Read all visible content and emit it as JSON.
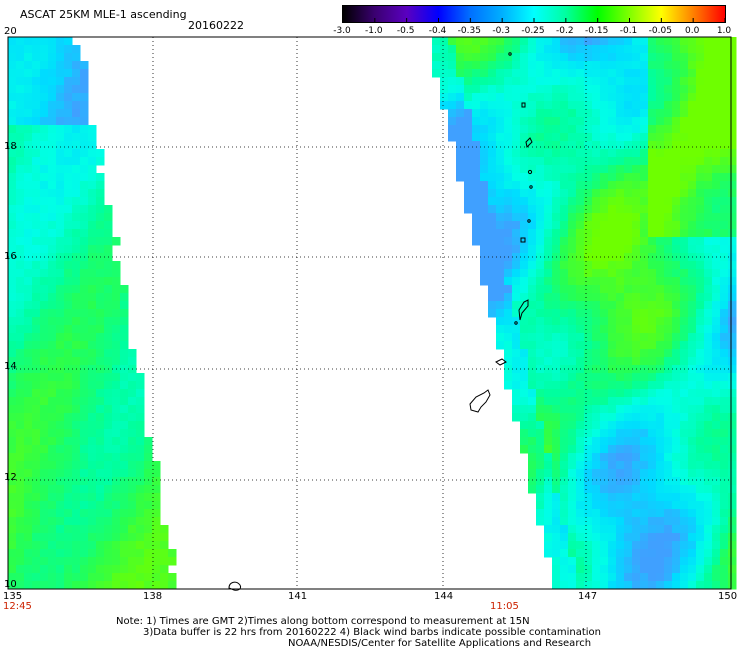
{
  "header": {
    "title": "ASCAT 25KM MLE-1 ascending",
    "date": "20160222"
  },
  "color_scale": {
    "labels": [
      "-3.0",
      "-1.0",
      "-0.5",
      "-0.4",
      "-0.35",
      "-0.3",
      "-0.25",
      "-0.2",
      "-0.15",
      "-0.1",
      "-0.05",
      "0.0",
      "1.0"
    ],
    "colors": [
      "#000000",
      "#3a0070",
      "#5a00c0",
      "#0000ff",
      "#0070ff",
      "#00b0ff",
      "#00ffff",
      "#00ffa0",
      "#00ff00",
      "#80ff00",
      "#ffff00",
      "#ff8000",
      "#ff0000"
    ]
  },
  "axes": {
    "lat_labels": [
      "20",
      "18",
      "16",
      "14",
      "12",
      "10"
    ],
    "lon_labels": [
      "135",
      "138",
      "141",
      "144",
      "147",
      "150"
    ],
    "lat_range": [
      10,
      20
    ],
    "lon_range": [
      135,
      150
    ]
  },
  "swath_times": {
    "left": "12:45",
    "right": "11:05"
  },
  "notes": {
    "line1": "Note: 1) Times are GMT 2)Times along bottom correspond to measurement at 15N",
    "line2": "3)Data buffer is 22 hrs from 20160222 4) Black wind barbs indicate possible contamination",
    "line3": "NOAA/NESDIS/Center for Satellite Applications and Research"
  }
}
